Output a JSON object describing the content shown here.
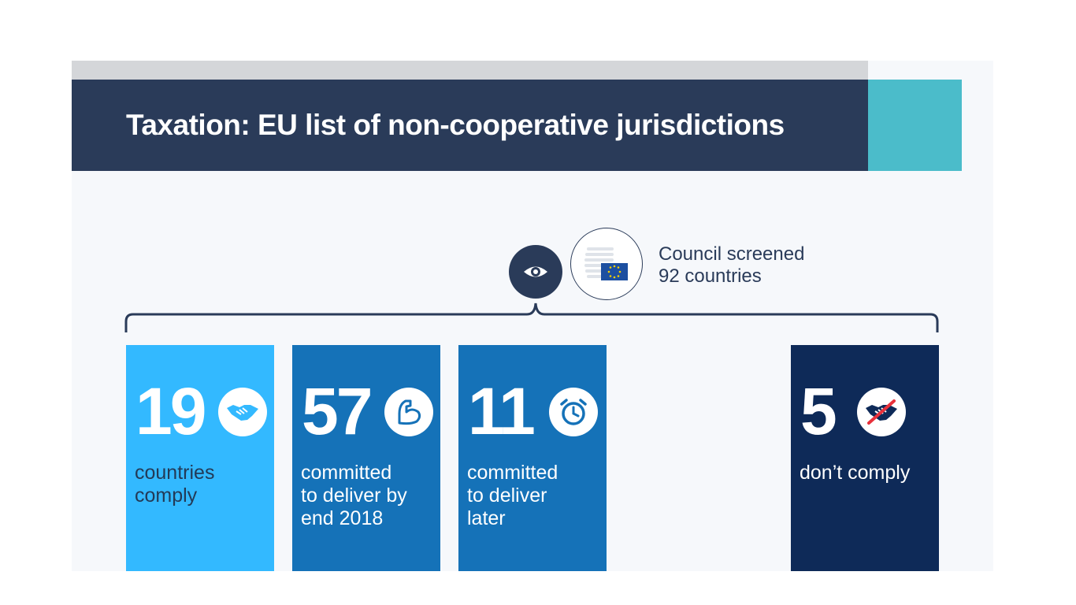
{
  "title": "Taxation: EU list of non-cooperative jurisdictions",
  "header_icon": "eye-icon",
  "council_icon": "eu-council-building-icon",
  "council": {
    "line1": "Council screened",
    "line2": "92 countries",
    "total": 92
  },
  "colors": {
    "banner": "#2a3b59",
    "accent": "#4bbcca",
    "comply": "#33b9ff",
    "committed": "#1572b8",
    "non_comply": "#0e2a58"
  },
  "chart_data": {
    "type": "table",
    "title": "Taxation: EU list of non-cooperative jurisdictions",
    "total_screened": 92,
    "categories": [
      {
        "value": 19,
        "label_lines": [
          "countries",
          "comply"
        ],
        "icon": "handshake-icon"
      },
      {
        "value": 57,
        "label_lines": [
          "committed",
          "to deliver by",
          "end 2018"
        ],
        "icon": "flexed-arm-icon"
      },
      {
        "value": 11,
        "label_lines": [
          "committed",
          "to deliver",
          "later"
        ],
        "icon": "alarm-clock-icon"
      },
      {
        "value": 5,
        "label_lines": [
          "don’t comply"
        ],
        "icon": "broken-handshake-icon"
      }
    ]
  }
}
